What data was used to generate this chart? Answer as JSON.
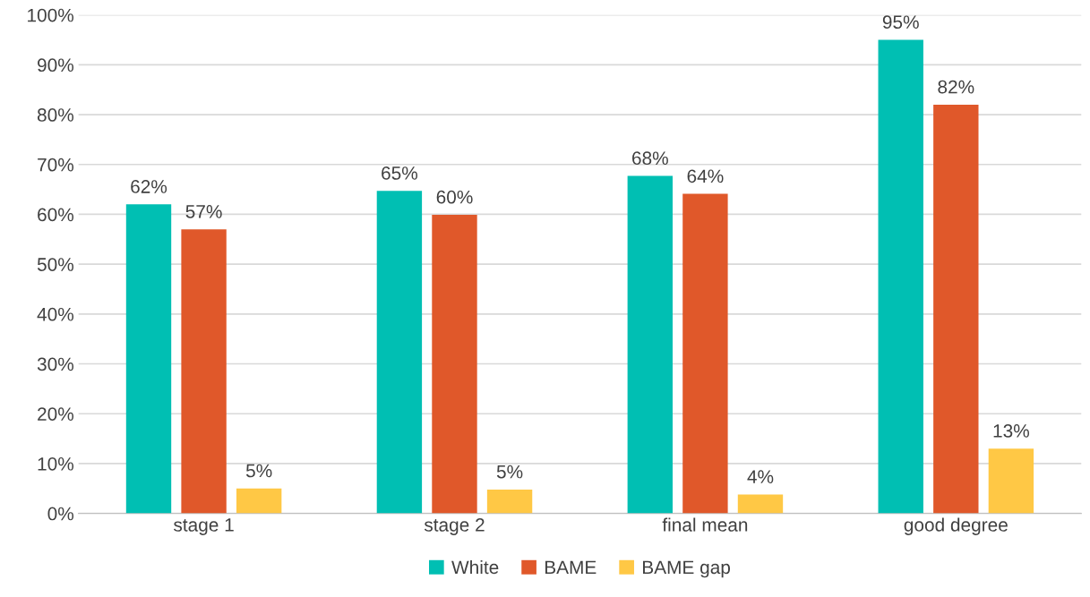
{
  "chart_data": {
    "type": "bar",
    "categories": [
      "stage 1",
      "stage 2",
      "final mean",
      "good degree"
    ],
    "series": [
      {
        "name": "White",
        "color": "#00bfb3",
        "values": [
          62,
          64.7,
          67.7,
          95
        ],
        "value_labels": [
          "62%",
          "65%",
          "68%",
          "95%"
        ]
      },
      {
        "name": "BAME",
        "color": "#e0582a",
        "values": [
          57,
          59.9,
          64.1,
          82
        ],
        "value_labels": [
          "57%",
          "60%",
          "64%",
          "82%"
        ]
      },
      {
        "name": "BAME gap",
        "color": "#ffc845",
        "values": [
          5,
          4.8,
          3.8,
          13
        ],
        "value_labels": [
          "5%",
          "5%",
          "4%",
          "13%"
        ]
      }
    ],
    "ylim": [
      0,
      100
    ],
    "yticks": [
      {
        "value": 0,
        "label": "0%"
      },
      {
        "value": 10,
        "label": "10%"
      },
      {
        "value": 20,
        "label": "20%"
      },
      {
        "value": 30,
        "label": "30%"
      },
      {
        "value": 40,
        "label": "40%"
      },
      {
        "value": 50,
        "label": "50%"
      },
      {
        "value": 60,
        "label": "60%"
      },
      {
        "value": 70,
        "label": "70%"
      },
      {
        "value": 80,
        "label": "80%"
      },
      {
        "value": 90,
        "label": "90%"
      },
      {
        "value": 100,
        "label": "100%"
      }
    ],
    "grid": "y",
    "legend": "bottom"
  }
}
